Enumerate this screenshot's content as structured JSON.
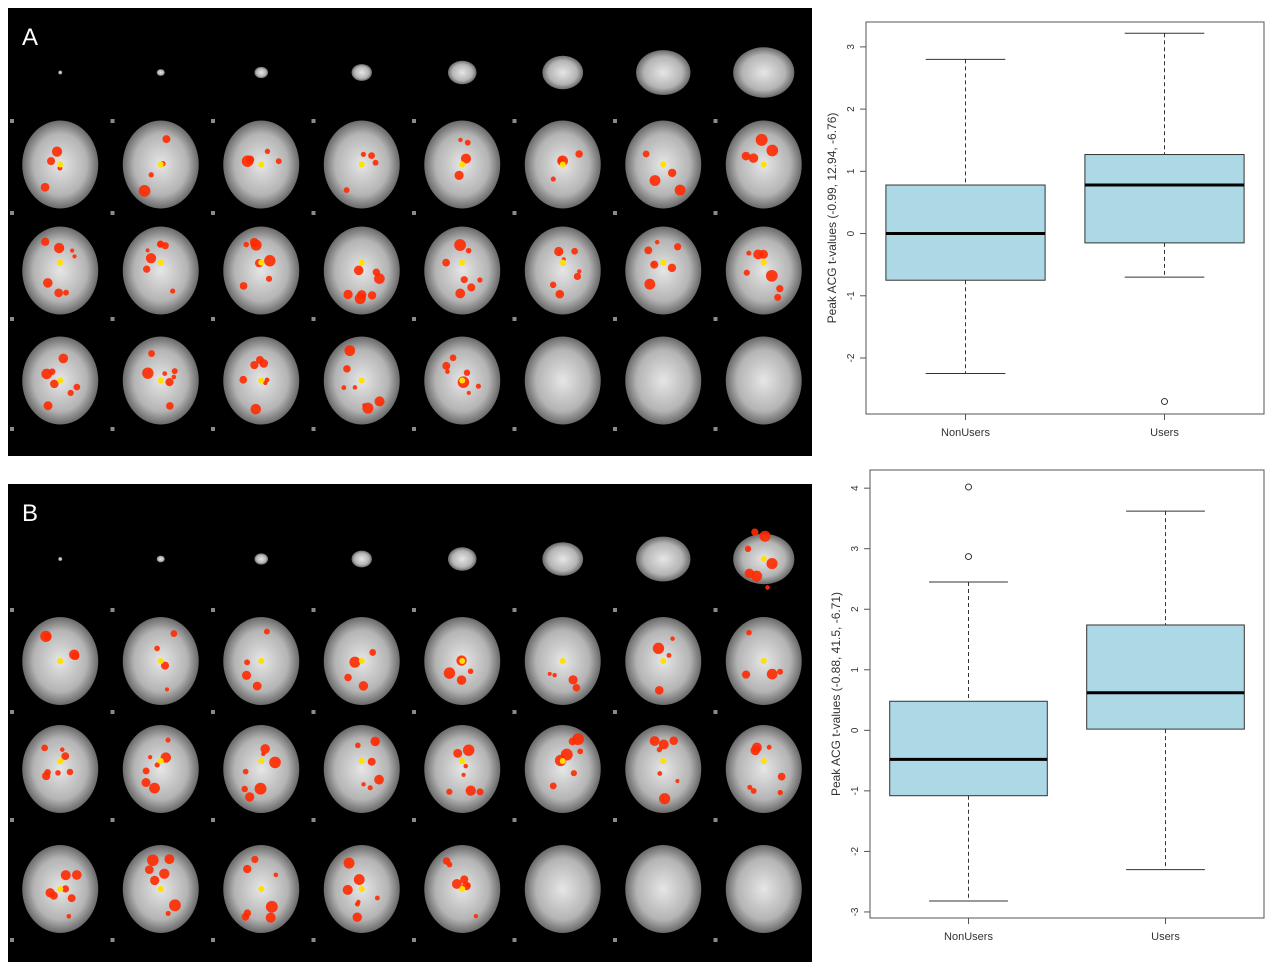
{
  "panels": [
    {
      "label": "A",
      "ylabel": "Peak ACG t-values  (-0.99, 12.94, -6.76)"
    },
    {
      "label": "B",
      "ylabel": "Peak ACG t-values  (-0.88, 41.5, -6.71)"
    }
  ],
  "colors": {
    "box_fill": "#add8e6",
    "activation_hot": "#ff2a00",
    "activation_peak": "#ffe000",
    "background": "#000000"
  },
  "chart_data": [
    {
      "type": "box",
      "categories": [
        "NonUsers",
        "Users"
      ],
      "ylabel": "Peak ACG t-values  (-0.99, 12.94, -6.76)",
      "ylim": [
        -2.9,
        3.4
      ],
      "yticks": [
        -2,
        -1,
        0,
        1,
        2,
        3
      ],
      "boxes": [
        {
          "category": "NonUsers",
          "whisker_low": -2.25,
          "q1": -0.75,
          "median": 0.0,
          "q3": 0.78,
          "whisker_high": 2.8,
          "outliers": []
        },
        {
          "category": "Users",
          "whisker_low": -0.7,
          "q1": -0.15,
          "median": 0.78,
          "q3": 1.27,
          "whisker_high": 3.22,
          "outliers": [
            -2.7
          ]
        }
      ]
    },
    {
      "type": "box",
      "categories": [
        "NonUsers",
        "Users"
      ],
      "ylabel": "Peak ACG t-values  (-0.88, 41.5, -6.71)",
      "ylim": [
        -3.1,
        4.3
      ],
      "yticks": [
        -3,
        -2,
        -1,
        0,
        1,
        2,
        3,
        4
      ],
      "boxes": [
        {
          "category": "NonUsers",
          "whisker_low": -2.82,
          "q1": -1.08,
          "median": -0.48,
          "q3": 0.48,
          "whisker_high": 2.45,
          "outliers": [
            2.87,
            4.02
          ]
        },
        {
          "category": "Users",
          "whisker_low": -2.3,
          "q1": 0.02,
          "median": 0.62,
          "q3": 1.74,
          "whisker_high": 3.62,
          "outliers": []
        }
      ]
    }
  ]
}
